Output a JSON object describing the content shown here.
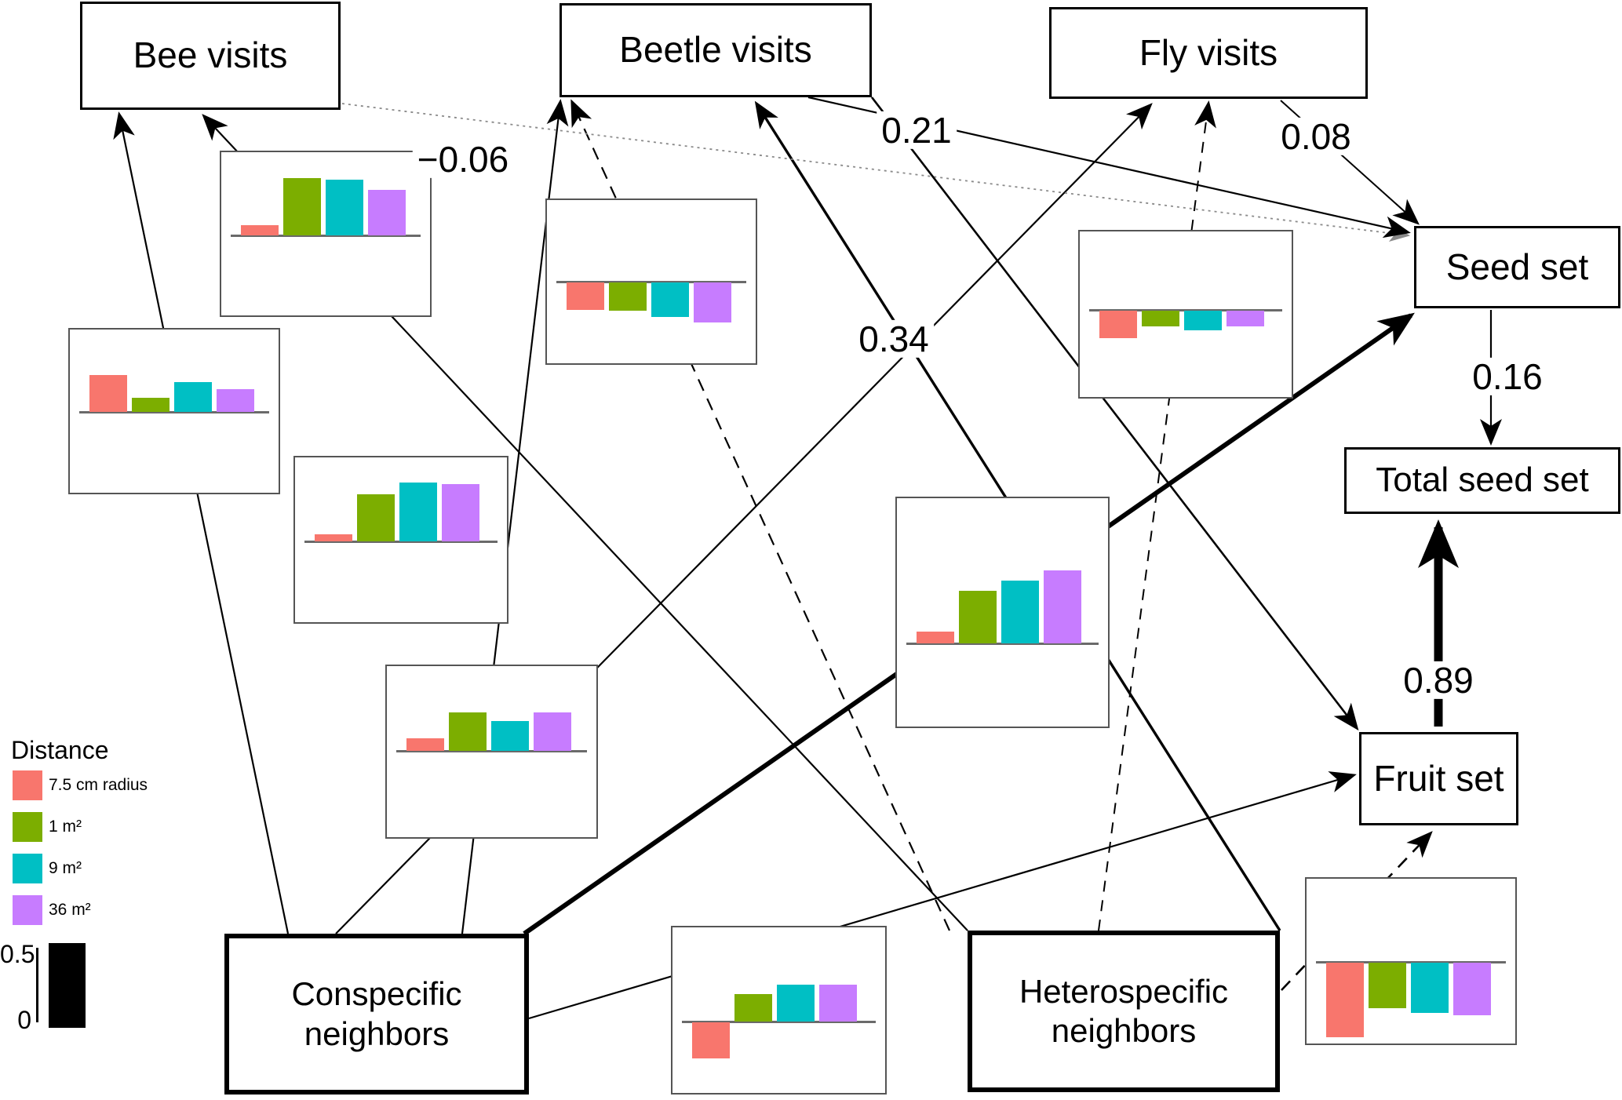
{
  "nodes": {
    "bee": "Bee visits",
    "beetle": "Beetle visits",
    "fly": "Fly visits",
    "seed": "Seed set",
    "total": "Total seed set",
    "fruit": "Fruit set",
    "conspecific": "Conspecific neighbors",
    "heterospecific": "Heterospecific neighbors"
  },
  "edges": [
    {
      "from": "Conspecific neighbors",
      "to": "Bee visits",
      "style": "solid",
      "coef": ""
    },
    {
      "from": "Conspecific neighbors",
      "to": "Beetle visits",
      "style": "solid",
      "coef": ""
    },
    {
      "from": "Conspecific neighbors",
      "to": "Fly visits",
      "style": "solid",
      "coef": ""
    },
    {
      "from": "Conspecific neighbors",
      "to": "Seed set",
      "style": "solid-thick",
      "coef": ""
    },
    {
      "from": "Conspecific neighbors",
      "to": "Fruit set",
      "style": "solid",
      "coef": ""
    },
    {
      "from": "Heterospecific neighbors",
      "to": "Bee visits",
      "style": "solid",
      "coef": ""
    },
    {
      "from": "Heterospecific neighbors",
      "to": "Beetle visits",
      "style": "dashed",
      "coef": ""
    },
    {
      "from": "Heterospecific neighbors",
      "to": "Beetle visits",
      "style": "solid",
      "coef": "0.34"
    },
    {
      "from": "Heterospecific neighbors",
      "to": "Fly visits",
      "style": "dashed",
      "coef": ""
    },
    {
      "from": "Heterospecific neighbors",
      "to": "Fruit set",
      "style": "dashed",
      "coef": ""
    },
    {
      "from": "Bee visits",
      "to": "Seed set",
      "style": "dotted",
      "coef": "−0.06"
    },
    {
      "from": "Beetle visits",
      "to": "Seed set",
      "style": "solid",
      "coef": "0.21"
    },
    {
      "from": "Fly visits",
      "to": "Seed set",
      "style": "solid",
      "coef": "0.08"
    },
    {
      "from": "Beetle visits",
      "to": "Fruit set",
      "style": "solid",
      "coef": ""
    },
    {
      "from": "Seed set",
      "to": "Total seed set",
      "style": "solid",
      "coef": "0.16"
    },
    {
      "from": "Fruit set",
      "to": "Total seed set",
      "style": "solid-thick",
      "coef": "0.89"
    }
  ],
  "legend": {
    "title": "Distance",
    "items": [
      {
        "label": "7.5 cm radius",
        "color": "#F8766D"
      },
      {
        "label": "1 m²",
        "color": "#7CAE00"
      },
      {
        "label": "9 m²",
        "color": "#00BFC4"
      },
      {
        "label": "36 m²",
        "color": "#C77CFF"
      }
    ]
  },
  "scale_ref": {
    "top": "0.5",
    "bottom": "0",
    "bar_color": "#000000"
  },
  "chart_data": [
    {
      "id": "A",
      "type": "bar",
      "on_edge": "Heterospecific neighbors → Bee visits",
      "categories": [
        "7.5 cm radius",
        "1 m²",
        "9 m²",
        "36 m²"
      ],
      "values": [
        0.07,
        0.4,
        0.39,
        0.32
      ],
      "ylim": [
        -0.6,
        0.6
      ]
    },
    {
      "id": "B",
      "type": "bar",
      "on_edge": "Conspecific neighbors → Bee visits",
      "categories": [
        "7.5 cm radius",
        "1 m²",
        "9 m²",
        "36 m²"
      ],
      "values": [
        0.26,
        0.1,
        0.21,
        0.16
      ],
      "ylim": [
        -0.6,
        0.6
      ]
    },
    {
      "id": "C",
      "type": "bar",
      "on_edge": "Conspecific neighbors → Beetle visits",
      "categories": [
        "7.5 cm radius",
        "1 m²",
        "9 m²",
        "36 m²"
      ],
      "values": [
        0.05,
        0.33,
        0.41,
        0.4
      ],
      "ylim": [
        -0.6,
        0.6
      ]
    },
    {
      "id": "D",
      "type": "bar",
      "on_edge": "Conspecific neighbors → Fly visits",
      "categories": [
        "7.5 cm radius",
        "1 m²",
        "9 m²",
        "36 m²"
      ],
      "values": [
        0.09,
        0.27,
        0.21,
        0.27
      ],
      "ylim": [
        -0.6,
        0.6
      ]
    },
    {
      "id": "E",
      "type": "bar",
      "on_edge": "Heterospecific neighbors → Beetle visits",
      "categories": [
        "7.5 cm radius",
        "1 m²",
        "9 m²",
        "36 m²"
      ],
      "values": [
        -0.19,
        -0.2,
        -0.24,
        -0.28
      ],
      "ylim": [
        -0.6,
        0.6
      ]
    },
    {
      "id": "F",
      "type": "bar",
      "on_edge": "Conspecific neighbors → Seed set",
      "categories": [
        "7.5 cm radius",
        "1 m²",
        "9 m²",
        "36 m²"
      ],
      "values": [
        0.08,
        0.37,
        0.44,
        0.51
      ],
      "ylim": [
        -0.6,
        0.6
      ]
    },
    {
      "id": "G",
      "type": "bar",
      "on_edge": "Heterospecific neighbors → Fly visits",
      "categories": [
        "7.5 cm radius",
        "1 m²",
        "9 m²",
        "36 m²"
      ],
      "values": [
        -0.19,
        -0.11,
        -0.14,
        -0.11
      ],
      "ylim": [
        -0.6,
        0.6
      ]
    },
    {
      "id": "H",
      "type": "bar",
      "on_edge": "Conspecific neighbors → Fruit set",
      "categories": [
        "7.5 cm radius",
        "1 m²",
        "9 m²",
        "36 m²"
      ],
      "values": [
        -0.25,
        0.19,
        0.26,
        0.26
      ],
      "ylim": [
        -0.6,
        0.6
      ]
    },
    {
      "id": "I",
      "type": "bar",
      "on_edge": "Heterospecific neighbors → Fruit set",
      "categories": [
        "7.5 cm radius",
        "1 m²",
        "9 m²",
        "36 m²"
      ],
      "values": [
        -0.52,
        -0.32,
        -0.35,
        -0.37
      ],
      "ylim": [
        -0.6,
        0.6
      ]
    }
  ]
}
